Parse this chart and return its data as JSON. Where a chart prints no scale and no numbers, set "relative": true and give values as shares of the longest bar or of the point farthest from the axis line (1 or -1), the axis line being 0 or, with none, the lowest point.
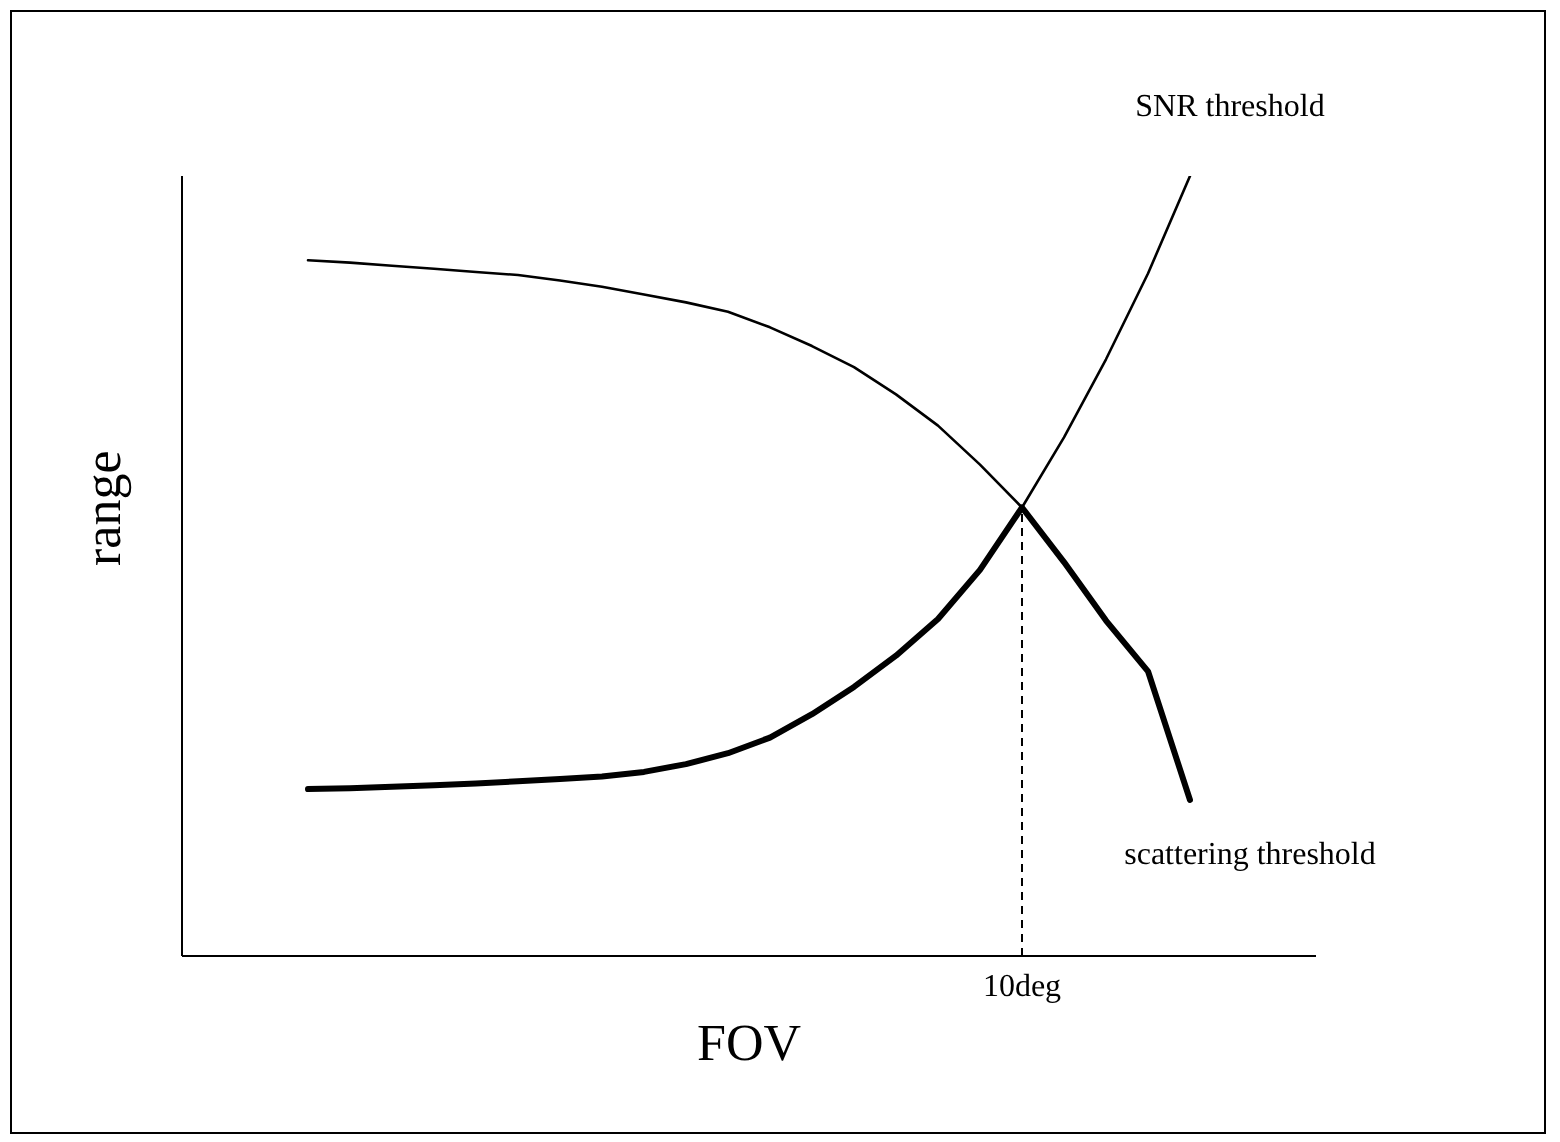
{
  "chart_data": {
    "type": "line",
    "xlabel": "FOV",
    "ylabel": "range",
    "relative": true,
    "marker": "none",
    "line_style": "solid",
    "categories": [
      null,
      null,
      null,
      null,
      null,
      null,
      null,
      null,
      null,
      null,
      null,
      null,
      null,
      null,
      null,
      null,
      null,
      null,
      null,
      null,
      null,
      null
    ],
    "annotations": [
      "10deg"
    ],
    "series": [
      {
        "name": "SNR threshold",
        "color": "#000000",
        "values": [
          0.214,
          0.215,
          0.217,
          0.219,
          0.221,
          0.224,
          0.227,
          0.23,
          0.236,
          0.246,
          0.26,
          0.28,
          0.31,
          0.345,
          0.385,
          0.432,
          0.495,
          0.575,
          0.665,
          0.765,
          0.875,
          1.0
        ]
      },
      {
        "name": "scattering threshold",
        "color": "#000000",
        "values": [
          0.892,
          0.889,
          0.885,
          0.881,
          0.877,
          0.873,
          0.866,
          0.858,
          0.848,
          0.838,
          0.826,
          0.806,
          0.782,
          0.755,
          0.72,
          0.68,
          0.63,
          0.575,
          0.505,
          0.43,
          0.365,
          0.2
        ]
      },
      {
        "color": "#000000",
        "values": [
          0.214,
          0.215,
          0.217,
          0.219,
          0.221,
          0.224,
          0.227,
          0.23,
          0.236,
          0.246,
          0.26,
          0.28,
          0.31,
          0.345,
          0.385,
          0.432,
          0.495,
          0.575,
          0.505,
          0.43,
          0.365,
          0.2
        ]
      }
    ]
  }
}
